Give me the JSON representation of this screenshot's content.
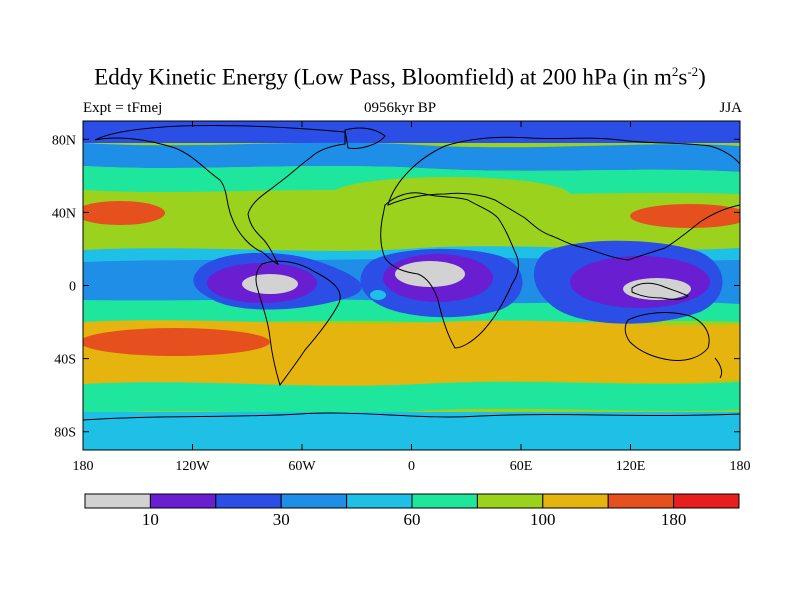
{
  "title": {
    "main": "Eddy Kinetic Energy (Low Pass, Bloomfield) at 200 hPa (in m",
    "sup1": "2",
    "mid": "s",
    "sup2": "-2",
    "end": ")"
  },
  "subtitle": {
    "left": "Expt = tFmej",
    "center": "0956kyr BP",
    "right": "JJA"
  },
  "map": {
    "lon_ticks": [
      {
        "lon": -180,
        "label": "180"
      },
      {
        "lon": -120,
        "label": "120W"
      },
      {
        "lon": -60,
        "label": "60W"
      },
      {
        "lon": 0,
        "label": "0"
      },
      {
        "lon": 60,
        "label": "60E"
      },
      {
        "lon": 120,
        "label": "120E"
      },
      {
        "lon": 180,
        "label": "180"
      }
    ],
    "lat_ticks": [
      {
        "lat": 80,
        "label": "80N"
      },
      {
        "lat": 40,
        "label": "40N"
      },
      {
        "lat": 0,
        "label": "0"
      },
      {
        "lat": -40,
        "label": "40S"
      },
      {
        "lat": -80,
        "label": "80S"
      }
    ],
    "colors": {
      "lvl0": "#d2d2d2",
      "lvl1": "#6a1ed2",
      "lvl2": "#2a4ee6",
      "lvl3": "#1e8ee6",
      "lvl4": "#1ec0e6",
      "lvl5": "#1ee69c",
      "lvl6": "#9ad21e",
      "lvl7": "#e6b40e",
      "lvl8": "#e6501e",
      "lvl9": "#e61e1e"
    }
  },
  "colorbar": {
    "colors": [
      "#d2d2d2",
      "#6a1ed2",
      "#2a4ee6",
      "#1e8ee6",
      "#1ec0e6",
      "#1ee69c",
      "#9ad21e",
      "#e6b40e",
      "#e6501e",
      "#e61e1e"
    ],
    "labels": [
      {
        "after_box": 1,
        "text": "10"
      },
      {
        "after_box": 3,
        "text": "30"
      },
      {
        "after_box": 5,
        "text": "60"
      },
      {
        "after_box": 7,
        "text": "100"
      },
      {
        "after_box": 9,
        "text": "180"
      }
    ]
  }
}
